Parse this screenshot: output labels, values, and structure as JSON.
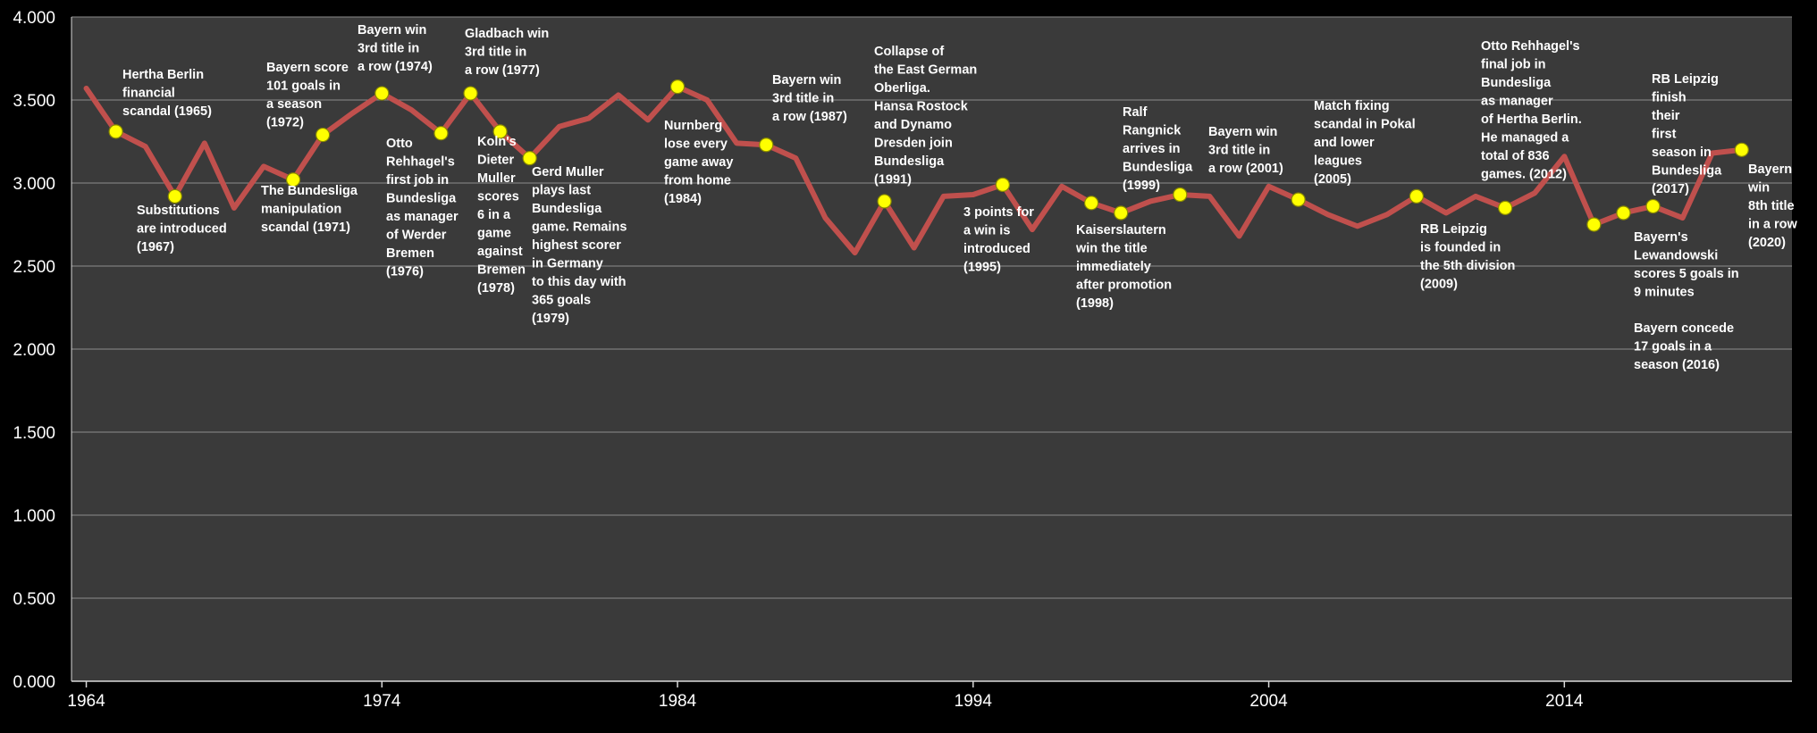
{
  "chart_data": {
    "type": "line",
    "title": "",
    "xlabel": "",
    "ylabel": "",
    "xlim": [
      1963.5,
      2021.7
    ],
    "ylim": [
      0,
      4
    ],
    "grid": true,
    "legend": "none",
    "colors": {
      "background": "#000000",
      "plot_area": "#3a3a3a",
      "line": "#c0504d",
      "marker": "#ffff00",
      "grid": "#8c8c8c",
      "text": "#ffffff"
    },
    "y_ticks": [
      "0.000",
      "0.500",
      "1.000",
      "1.500",
      "2.000",
      "2.500",
      "3.000",
      "3.500",
      "4.000"
    ],
    "x_ticks": [
      "1964",
      "1974",
      "1984",
      "1994",
      "2004",
      "2014"
    ],
    "series": [
      {
        "x": [
          1964,
          1965,
          1966,
          1967,
          1968,
          1969,
          1970,
          1971,
          1972,
          1973,
          1974,
          1975,
          1976,
          1977,
          1978,
          1979,
          1980,
          1981,
          1982,
          1983,
          1984,
          1985,
          1986,
          1987,
          1988,
          1989,
          1990,
          1991,
          1992,
          1993,
          1994,
          1995,
          1996,
          1997,
          1998,
          1999,
          2000,
          2001,
          2002,
          2003,
          2004,
          2005,
          2006,
          2007,
          2008,
          2009,
          2010,
          2011,
          2012,
          2013,
          2014,
          2015,
          2016,
          2017,
          2018,
          2019,
          2020
        ],
        "values": [
          3.57,
          3.31,
          3.22,
          2.92,
          3.24,
          2.85,
          3.1,
          3.02,
          3.29,
          3.42,
          3.54,
          3.44,
          3.3,
          3.54,
          3.31,
          3.15,
          3.34,
          3.39,
          3.53,
          3.38,
          3.58,
          3.5,
          3.24,
          3.23,
          3.15,
          2.79,
          2.58,
          2.89,
          2.61,
          2.92,
          2.93,
          2.99,
          2.72,
          2.98,
          2.88,
          2.82,
          2.89,
          2.93,
          2.92,
          2.68,
          2.98,
          2.9,
          2.81,
          2.74,
          2.81,
          2.92,
          2.82,
          2.92,
          2.85,
          2.94,
          3.16,
          2.75,
          2.82,
          2.86,
          2.79,
          3.18,
          3.2
        ]
      }
    ],
    "annotations": [
      {
        "year": 1965,
        "lines": [
          "Hertha Berlin",
          "financial",
          "scandal (1965)"
        ]
      },
      {
        "year": 1967,
        "lines": [
          "Substitutions",
          "are introduced",
          "(1967)"
        ]
      },
      {
        "year": 1971,
        "lines": [
          "The Bundesliga",
          "manipulation",
          "scandal (1971)"
        ]
      },
      {
        "year": 1972,
        "lines": [
          "Bayern score",
          "101 goals in",
          "a season",
          "(1972)"
        ]
      },
      {
        "year": 1974,
        "lines": [
          "Bayern win",
          "3rd title in",
          "a row (1974)"
        ]
      },
      {
        "year": 1976,
        "lines": [
          "Otto",
          "Rehhagel's",
          "first job in",
          "Bundesliga",
          "as manager",
          "of Werder",
          "Bremen",
          "(1976)"
        ]
      },
      {
        "year": 1977,
        "lines": [
          "Gladbach win",
          "3rd title in",
          "a row (1977)"
        ]
      },
      {
        "year": 1978,
        "lines": [
          "Koln's",
          "Dieter",
          "Muller",
          "scores",
          "6 in a",
          "game",
          "against",
          "Bremen",
          "(1978)"
        ]
      },
      {
        "year": 1979,
        "lines": [
          "Gerd Muller",
          "plays last",
          "Bundesliga",
          "game. Remains",
          "highest scorer",
          "in Germany",
          "to this day with",
          "365 goals",
          "(1979)"
        ]
      },
      {
        "year": 1984,
        "lines": [
          "Nurnberg",
          "lose every",
          "game away",
          "from home",
          "(1984)"
        ]
      },
      {
        "year": 1987,
        "lines": [
          "Bayern win",
          "3rd title in",
          "a row (1987)"
        ]
      },
      {
        "year": 1991,
        "lines": [
          "Collapse of",
          "the East German",
          "Oberliga.",
          "Hansa Rostock",
          "and Dynamo",
          "Dresden join",
          "Bundesliga",
          "(1991)"
        ]
      },
      {
        "year": 1995,
        "lines": [
          "3 points for",
          "a win is",
          "introduced",
          "(1995)"
        ]
      },
      {
        "year": 1998,
        "lines": [
          "Kaiserslautern",
          "win the title",
          "immediately",
          "after promotion",
          "(1998)"
        ]
      },
      {
        "year": 1999,
        "lines": [
          "Ralf",
          "Rangnick",
          "arrives in",
          "Bundesliga",
          "(1999)"
        ]
      },
      {
        "year": 2001,
        "lines": [
          "Bayern win",
          "3rd title in",
          "a row (2001)"
        ]
      },
      {
        "year": 2005,
        "lines": [
          "Match fixing",
          "scandal in Pokal",
          "and lower",
          "leagues",
          "(2005)"
        ]
      },
      {
        "year": 2009,
        "lines": [
          "RB Leipzig",
          "is founded in",
          "the 5th division",
          "(2009)"
        ]
      },
      {
        "year": 2012,
        "lines": [
          "Otto Rehhagel's",
          "final job in",
          "Bundesliga",
          "as manager",
          "of Hertha Berlin.",
          "He managed a",
          "total of 836",
          "games. (2012)"
        ]
      },
      {
        "year": 2015,
        "lines": [
          "Bayern's",
          "Lewandowski",
          "scores 5 goals in",
          "9 minutes"
        ]
      },
      {
        "year": 2016,
        "lines": [
          "Bayern concede",
          "17 goals in a",
          "season (2016)"
        ]
      },
      {
        "year": 2017,
        "lines": [
          "RB Leipzig",
          "finish",
          "their",
          "first",
          "season in",
          "Bundesliga",
          "(2017)"
        ]
      },
      {
        "year": 2020,
        "lines": [
          "Bayern",
          "win",
          "8th title",
          "in a row",
          "(2020)"
        ]
      }
    ]
  }
}
